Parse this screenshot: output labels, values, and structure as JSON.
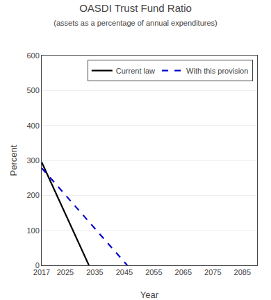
{
  "chart_data": {
    "type": "line",
    "title": "OASDI Trust Fund Ratio",
    "subtitle": "(assets as a percentage of annual expenditures)",
    "xlabel": "Year",
    "ylabel": "Percent",
    "xlim": [
      2017,
      2090
    ],
    "ylim": [
      0,
      600
    ],
    "xticks": [
      2017,
      2025,
      2035,
      2045,
      2055,
      2065,
      2075,
      2085
    ],
    "yticks": [
      0,
      100,
      200,
      300,
      400,
      500,
      600
    ],
    "grid": "y",
    "legend": "upper right",
    "series": [
      {
        "name": "Current law",
        "color": "#000000",
        "line_style": "solid",
        "x": [
          2017,
          2033
        ],
        "values": [
          295,
          0
        ]
      },
      {
        "name": "With this provision",
        "color": "#0000cc",
        "line_style": "dashed",
        "x": [
          2017,
          2046
        ],
        "values": [
          278,
          0
        ]
      }
    ]
  }
}
